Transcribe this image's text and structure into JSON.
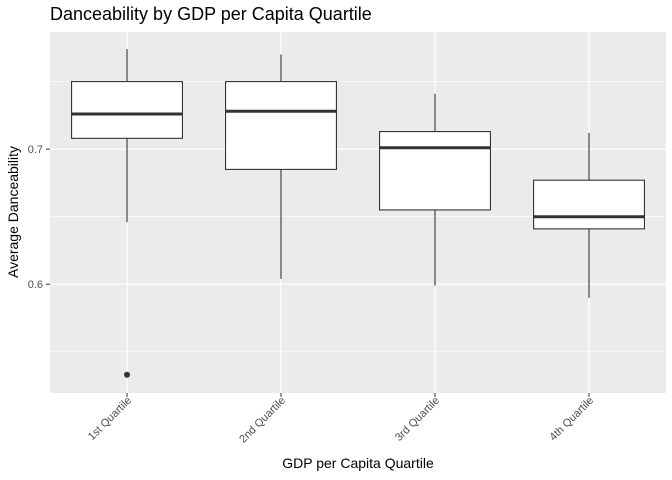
{
  "chart_data": {
    "type": "boxplot",
    "title": "Danceability by GDP per Capita Quartile",
    "xlabel": "GDP per Capita Quartile",
    "ylabel": "Average Danceability",
    "categories": [
      "1st Quartile",
      "2nd Quartile",
      "3rd Quartile",
      "4th Quartile"
    ],
    "boxes": [
      {
        "category": "1st Quartile",
        "whisker_low": 0.646,
        "q1": 0.708,
        "median": 0.726,
        "q3": 0.75,
        "whisker_high": 0.774,
        "outliers": [
          0.533
        ]
      },
      {
        "category": "2nd Quartile",
        "whisker_low": 0.604,
        "q1": 0.685,
        "median": 0.728,
        "q3": 0.75,
        "whisker_high": 0.77,
        "outliers": []
      },
      {
        "category": "3rd Quartile",
        "whisker_low": 0.599,
        "q1": 0.655,
        "median": 0.701,
        "q3": 0.713,
        "whisker_high": 0.741,
        "outliers": []
      },
      {
        "category": "4th Quartile",
        "whisker_low": 0.59,
        "q1": 0.641,
        "median": 0.65,
        "q3": 0.677,
        "whisker_high": 0.712,
        "outliers": []
      }
    ],
    "ylim": [
      0.5195,
      0.7867
    ],
    "yticks": [
      0.6,
      0.7
    ],
    "ytick_labels": [
      "0.6",
      "0.7"
    ],
    "grid": true,
    "colors": {
      "panel_background": "#ebebeb",
      "grid_major": "#ffffff",
      "box_fill": "#ffffff",
      "box_outline": "#333333",
      "outlier": "#333333"
    }
  }
}
